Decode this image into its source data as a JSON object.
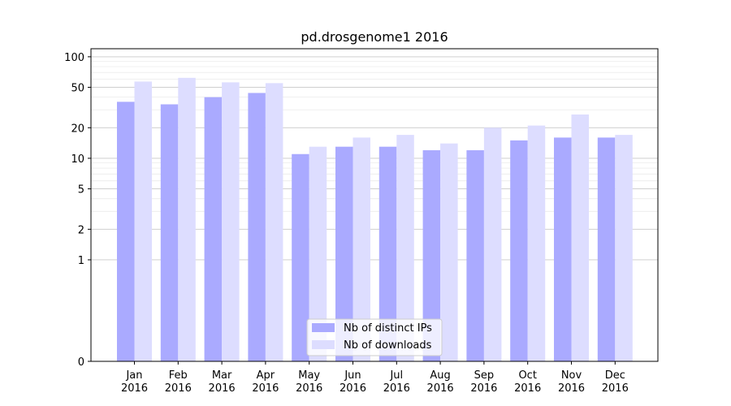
{
  "chart_data": {
    "type": "bar",
    "title": "pd.drosgenome1 2016",
    "xlabel": "",
    "ylabel": "",
    "y_scale": "symlog",
    "ylim": [
      0,
      120
    ],
    "grid": "horizontal",
    "categories": [
      [
        "Jan",
        "2016"
      ],
      [
        "Feb",
        "2016"
      ],
      [
        "Mar",
        "2016"
      ],
      [
        "Apr",
        "2016"
      ],
      [
        "May",
        "2016"
      ],
      [
        "Jun",
        "2016"
      ],
      [
        "Jul",
        "2016"
      ],
      [
        "Aug",
        "2016"
      ],
      [
        "Sep",
        "2016"
      ],
      [
        "Oct",
        "2016"
      ],
      [
        "Nov",
        "2016"
      ],
      [
        "Dec",
        "2016"
      ]
    ],
    "y_ticks": [
      0,
      1,
      2,
      5,
      10,
      20,
      50,
      100
    ],
    "legend_position": "bottom-center",
    "series": [
      {
        "name": "Nb of distinct IPs",
        "color": "#aaaaff",
        "values": [
          36,
          34,
          40,
          44,
          11,
          13,
          13,
          12,
          12,
          15,
          16,
          16
        ]
      },
      {
        "name": "Nb of downloads",
        "color": "#ddddff",
        "values": [
          57,
          62,
          56,
          55,
          13,
          16,
          17,
          14,
          20,
          21,
          27,
          17
        ]
      }
    ]
  }
}
